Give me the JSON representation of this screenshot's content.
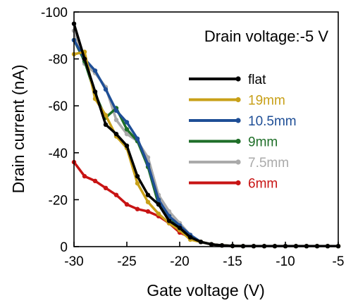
{
  "chart_data": {
    "type": "line",
    "annotation": "Drain voltage:-5 V",
    "xlabel": "Gate voltage (V)",
    "ylabel": "Drain current (nA)",
    "xlim": [
      -30,
      -5
    ],
    "ylim": [
      0,
      -100
    ],
    "x_ticks": [
      -30,
      -25,
      -20,
      -15,
      -10,
      -5
    ],
    "x_tick_labels": [
      "-30",
      "-25",
      "-20",
      "-15",
      "-10",
      "-5"
    ],
    "y_ticks": [
      0,
      -20,
      -40,
      -60,
      -80,
      -100
    ],
    "y_tick_labels": [
      "0",
      "-20",
      "-40",
      "-60",
      "-80",
      "-100"
    ],
    "grid": false,
    "legend_position": "right",
    "series": [
      {
        "name": "flat",
        "color": "#000000",
        "x": [
          -30,
          -29,
          -28,
          -27,
          -26,
          -25,
          -24,
          -23,
          -22,
          -21,
          -20,
          -19,
          -18,
          -17,
          -16,
          -15,
          -14,
          -13,
          -12,
          -11,
          -10,
          -9,
          -8,
          -7,
          -6,
          -5
        ],
        "y": [
          -95,
          -80,
          -66,
          -52,
          -48,
          -43,
          -30,
          -22,
          -18,
          -11,
          -8,
          -4,
          -2,
          -1,
          -0.5,
          -0.3,
          -0.2,
          -0.2,
          -0.2,
          -0.2,
          -0.2,
          -0.2,
          -0.2,
          -0.2,
          -0.2,
          -0.2
        ]
      },
      {
        "name": "19mm",
        "color": "#c8a018",
        "x": [
          -30,
          -29,
          -28,
          -27,
          -26,
          -25,
          -24,
          -23,
          -22,
          -21,
          -20,
          -19,
          -18,
          -17,
          -16,
          -15,
          -14,
          -13,
          -12,
          -11,
          -10,
          -9,
          -8,
          -7,
          -6,
          -5
        ],
        "y": [
          -82,
          -83,
          -63,
          -56,
          -47,
          -42,
          -27,
          -19,
          -14,
          -10,
          -7,
          -3,
          -2,
          -1,
          -0.5,
          -0.3,
          -0.2,
          -0.2,
          -0.2,
          -0.2,
          -0.2,
          -0.2,
          -0.2,
          -0.2,
          -0.2,
          -0.2
        ]
      },
      {
        "name": "10.5mm",
        "color": "#1e4e96",
        "x": [
          -30,
          -29,
          -28,
          -27,
          -26,
          -25,
          -24,
          -23,
          -22,
          -21,
          -20,
          -19,
          -18,
          -17,
          -16,
          -15,
          -14,
          -13,
          -12,
          -11,
          -10,
          -9,
          -8,
          -7,
          -6,
          -5
        ],
        "y": [
          -88,
          -80,
          -75,
          -67,
          -58,
          -53,
          -46,
          -35,
          -20,
          -13,
          -9,
          -5,
          -2,
          -1,
          -0.5,
          -0.3,
          -0.2,
          -0.2,
          -0.2,
          -0.2,
          -0.2,
          -0.2,
          -0.2,
          -0.2,
          -0.2,
          -0.2
        ]
      },
      {
        "name": "9mm",
        "color": "#1e6e28",
        "x": [
          -30,
          -29,
          -28,
          -27,
          -26,
          -25,
          -24,
          -23,
          -22,
          -21,
          -20,
          -19,
          -18,
          -17,
          -16,
          -15,
          -14,
          -13,
          -12,
          -11,
          -10,
          -9,
          -8,
          -7,
          -6,
          -5
        ],
        "y": [
          -88,
          -79,
          -65,
          -55,
          -59,
          -50,
          -45,
          -34,
          -18,
          -13,
          -8,
          -4,
          -2,
          -1,
          -0.5,
          -0.3,
          -0.2,
          -0.2,
          -0.2,
          -0.2,
          -0.2,
          -0.2,
          -0.2,
          -0.2,
          -0.2,
          -0.2
        ]
      },
      {
        "name": "7.5mm",
        "color": "#aaaaaa",
        "x": [
          -30,
          -29,
          -28,
          -27,
          -26,
          -25,
          -24,
          -23,
          -22,
          -21,
          -20,
          -19,
          -18,
          -17,
          -16,
          -15,
          -14,
          -13,
          -12,
          -11,
          -10,
          -9,
          -8,
          -7,
          -6,
          -5
        ],
        "y": [
          -92,
          -78,
          -74,
          -68,
          -54,
          -48,
          -45,
          -38,
          -22,
          -15,
          -10,
          -5,
          -2,
          -1,
          -0.5,
          -0.3,
          -0.2,
          -0.2,
          -0.2,
          -0.2,
          -0.2,
          -0.2,
          -0.2,
          -0.2,
          -0.2,
          -0.2
        ]
      },
      {
        "name": "6mm",
        "color": "#c81414",
        "x": [
          -30,
          -29,
          -28,
          -27,
          -26,
          -25,
          -24,
          -23,
          -22,
          -21,
          -20,
          -19,
          -18,
          -17,
          -16,
          -15,
          -14,
          -13,
          -12,
          -11,
          -10,
          -9,
          -8,
          -7,
          -6,
          -5
        ],
        "y": [
          -36,
          -30,
          -28,
          -25,
          -22,
          -18,
          -16,
          -15,
          -13,
          -10,
          -6,
          -4,
          -2,
          -1,
          -0.5,
          -0.3,
          -0.2,
          -0.2,
          -0.2,
          -0.2,
          -0.2,
          -0.2,
          -0.2,
          -0.2,
          -0.2,
          -0.2
        ]
      }
    ]
  }
}
